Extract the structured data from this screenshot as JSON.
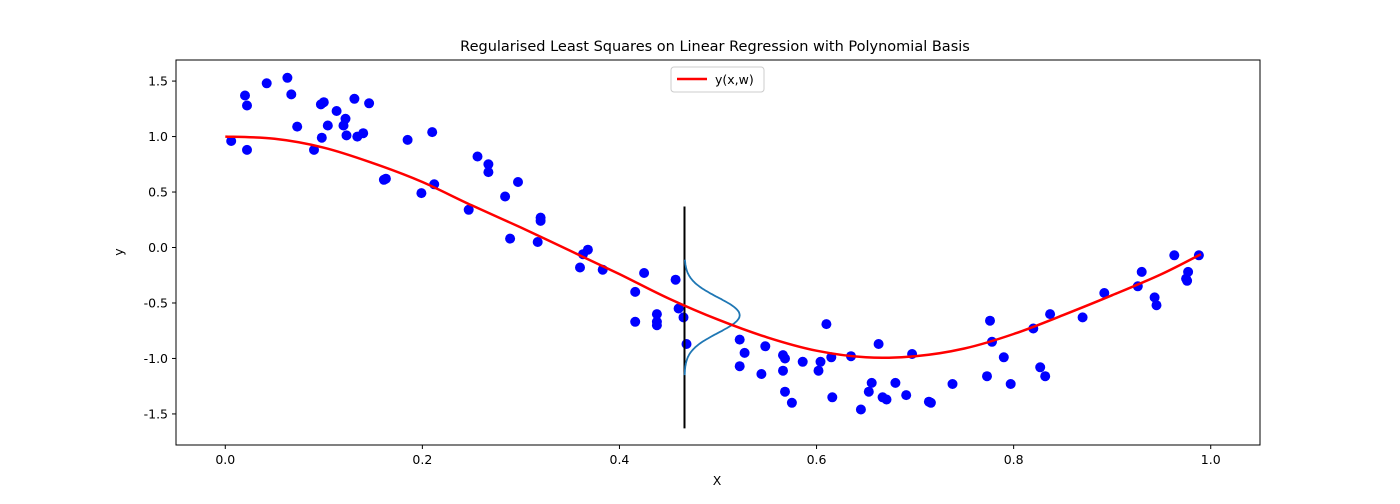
{
  "chart_data": {
    "type": "scatter",
    "title": "Regularised Least Squares on Linear Regression with Polynomial Basis",
    "xlabel": "X",
    "ylabel": "y",
    "xlim": [
      -0.05,
      1.05
    ],
    "ylim": [
      -1.78,
      1.69
    ],
    "xticks": [
      "0.0",
      "0.2",
      "0.4",
      "0.6",
      "0.8",
      "1.0"
    ],
    "xtick_values": [
      0.0,
      0.2,
      0.4,
      0.6,
      0.8,
      1.0
    ],
    "yticks": [
      "-1.5",
      "-1.0",
      "-0.5",
      "0.0",
      "0.5",
      "1.0",
      "1.5"
    ],
    "ytick_values": [
      -1.5,
      -1.0,
      -0.5,
      0.0,
      0.5,
      1.0,
      1.5
    ],
    "grid": false,
    "legend": {
      "position": "top-center",
      "entries": [
        "y(x,w)"
      ]
    },
    "colors": {
      "points": "#0000ff",
      "fit": "#ff0000",
      "gaussian": "#1f77b4",
      "vline": "#000000"
    },
    "points": [
      [
        0.006,
        0.96
      ],
      [
        0.02,
        1.37
      ],
      [
        0.022,
        1.28
      ],
      [
        0.022,
        0.88
      ],
      [
        0.042,
        1.48
      ],
      [
        0.063,
        1.53
      ],
      [
        0.067,
        1.38
      ],
      [
        0.073,
        1.09
      ],
      [
        0.09,
        0.88
      ],
      [
        0.097,
        1.29
      ],
      [
        0.1,
        1.31
      ],
      [
        0.098,
        0.99
      ],
      [
        0.104,
        1.1
      ],
      [
        0.113,
        1.23
      ],
      [
        0.12,
        1.1
      ],
      [
        0.122,
        1.16
      ],
      [
        0.123,
        1.01
      ],
      [
        0.131,
        1.34
      ],
      [
        0.134,
        1.0
      ],
      [
        0.14,
        1.03
      ],
      [
        0.146,
        1.3
      ],
      [
        0.161,
        0.61
      ],
      [
        0.163,
        0.62
      ],
      [
        0.185,
        0.97
      ],
      [
        0.199,
        0.49
      ],
      [
        0.21,
        1.04
      ],
      [
        0.212,
        0.57
      ],
      [
        0.247,
        0.34
      ],
      [
        0.256,
        0.82
      ],
      [
        0.267,
        0.75
      ],
      [
        0.267,
        0.68
      ],
      [
        0.284,
        0.46
      ],
      [
        0.289,
        0.08
      ],
      [
        0.297,
        0.59
      ],
      [
        0.317,
        0.05
      ],
      [
        0.32,
        0.24
      ],
      [
        0.32,
        0.27
      ],
      [
        0.36,
        -0.18
      ],
      [
        0.363,
        -0.06
      ],
      [
        0.368,
        -0.02
      ],
      [
        0.383,
        -0.2
      ],
      [
        0.416,
        -0.4
      ],
      [
        0.416,
        -0.67
      ],
      [
        0.425,
        -0.23
      ],
      [
        0.438,
        -0.6
      ],
      [
        0.438,
        -0.67
      ],
      [
        0.438,
        -0.7
      ],
      [
        0.457,
        -0.29
      ],
      [
        0.46,
        -0.55
      ],
      [
        0.465,
        -0.63
      ],
      [
        0.468,
        -0.87
      ],
      [
        0.522,
        -0.83
      ],
      [
        0.522,
        -1.07
      ],
      [
        0.527,
        -0.95
      ],
      [
        0.544,
        -1.14
      ],
      [
        0.548,
        -0.89
      ],
      [
        0.566,
        -0.97
      ],
      [
        0.566,
        -1.11
      ],
      [
        0.568,
        -1.0
      ],
      [
        0.568,
        -1.3
      ],
      [
        0.575,
        -1.4
      ],
      [
        0.586,
        -1.03
      ],
      [
        0.602,
        -1.11
      ],
      [
        0.604,
        -1.03
      ],
      [
        0.61,
        -0.69
      ],
      [
        0.615,
        -0.99
      ],
      [
        0.616,
        -1.35
      ],
      [
        0.635,
        -0.98
      ],
      [
        0.645,
        -1.46
      ],
      [
        0.653,
        -1.3
      ],
      [
        0.656,
        -1.22
      ],
      [
        0.663,
        -0.87
      ],
      [
        0.667,
        -1.35
      ],
      [
        0.671,
        -1.37
      ],
      [
        0.68,
        -1.22
      ],
      [
        0.691,
        -1.33
      ],
      [
        0.697,
        -0.96
      ],
      [
        0.714,
        -1.39
      ],
      [
        0.716,
        -1.4
      ],
      [
        0.738,
        -1.23
      ],
      [
        0.773,
        -1.16
      ],
      [
        0.776,
        -0.66
      ],
      [
        0.778,
        -0.85
      ],
      [
        0.79,
        -0.99
      ],
      [
        0.797,
        -1.23
      ],
      [
        0.82,
        -0.73
      ],
      [
        0.827,
        -1.08
      ],
      [
        0.832,
        -1.16
      ],
      [
        0.837,
        -0.6
      ],
      [
        0.87,
        -0.63
      ],
      [
        0.892,
        -0.41
      ],
      [
        0.926,
        -0.35
      ],
      [
        0.93,
        -0.22
      ],
      [
        0.943,
        -0.45
      ],
      [
        0.945,
        -0.52
      ],
      [
        0.963,
        -0.07
      ],
      [
        0.975,
        -0.28
      ],
      [
        0.976,
        -0.3
      ],
      [
        0.977,
        -0.22
      ],
      [
        0.988,
        -0.07
      ]
    ],
    "fit_curve": [
      [
        0.0,
        1.0
      ],
      [
        0.05,
        0.98
      ],
      [
        0.1,
        0.9
      ],
      [
        0.15,
        0.76
      ],
      [
        0.2,
        0.59
      ],
      [
        0.25,
        0.38
      ],
      [
        0.3,
        0.18
      ],
      [
        0.35,
        -0.03
      ],
      [
        0.4,
        -0.24
      ],
      [
        0.45,
        -0.46
      ],
      [
        0.5,
        -0.65
      ],
      [
        0.55,
        -0.81
      ],
      [
        0.6,
        -0.93
      ],
      [
        0.65,
        -0.99
      ],
      [
        0.7,
        -0.98
      ],
      [
        0.75,
        -0.91
      ],
      [
        0.8,
        -0.78
      ],
      [
        0.85,
        -0.61
      ],
      [
        0.9,
        -0.43
      ],
      [
        0.95,
        -0.24
      ],
      [
        0.99,
        -0.06
      ]
    ],
    "predictive_line": {
      "x": 0.466,
      "y_range": [
        -1.63,
        0.37
      ]
    },
    "predictive_gaussian": {
      "x": 0.466,
      "mean": -0.61,
      "sd": 0.16,
      "peak_width": 0.056,
      "y_range": [
        -1.15,
        -0.11
      ]
    }
  }
}
